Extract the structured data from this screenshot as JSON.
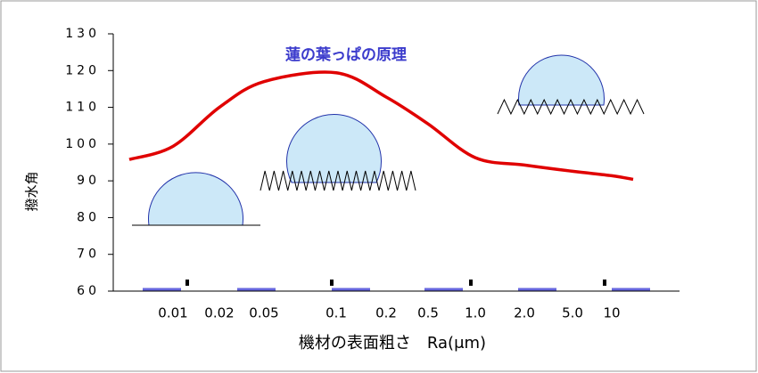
{
  "chart_data": {
    "type": "line",
    "title": "蓮の葉っぱの原理",
    "y_label": "撥水角",
    "x_label": "機材の表面粗さ　Ra(μm)",
    "categories": [
      null,
      "0.01",
      "0.02",
      "0.05",
      "0.1",
      "0.2",
      "0.5",
      "1.0",
      "2.0",
      "5.0",
      "10",
      null
    ],
    "series": [
      {
        "color": "#e00000",
        "values": [
          95.8,
          99.4,
          110,
          117,
          119.4,
          112.8,
          105.5,
          96.3,
          94.3,
          92.6,
          91.4,
          90.4
        ]
      }
    ],
    "ylim": [
      60,
      130
    ],
    "yticks": [
      60,
      70,
      80,
      90,
      100,
      110,
      120,
      130
    ]
  }
}
